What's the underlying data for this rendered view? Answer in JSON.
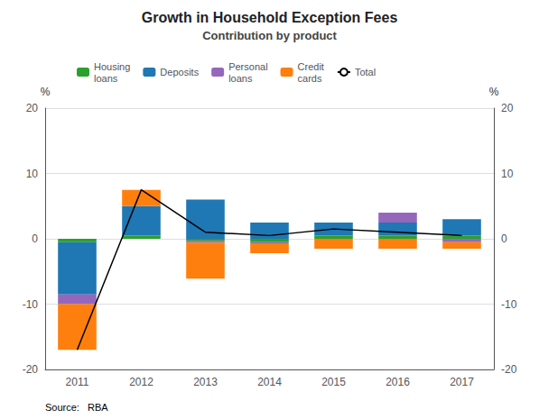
{
  "chart_data": {
    "type": "bar",
    "title": "Growth in Household Exception Fees",
    "subtitle": "Contribution by product",
    "categories": [
      2011,
      2012,
      2013,
      2014,
      2015,
      2016,
      2017
    ],
    "series": [
      {
        "name": "Housing\nloans",
        "color": "#2ca02c",
        "values": [
          -0.5,
          0.5,
          -0.3,
          -0.5,
          0.5,
          0.5,
          0.5
        ]
      },
      {
        "name": "Deposits",
        "color": "#1f77b4",
        "values": [
          -8.0,
          4.5,
          6.0,
          2.5,
          2.0,
          2.0,
          2.5
        ]
      },
      {
        "name": "Personal\nloans",
        "color": "#9467bd",
        "values": [
          -1.5,
          0.0,
          -0.3,
          -0.2,
          0.0,
          1.5,
          -0.5
        ]
      },
      {
        "name": "Credit\ncards",
        "color": "#ff7f0e",
        "values": [
          -7.0,
          2.5,
          -5.5,
          -1.5,
          -1.5,
          -1.5,
          -1.0
        ]
      },
      {
        "name": "Total",
        "type": "line",
        "color": "#000000",
        "values": [
          -17.0,
          7.5,
          1.0,
          0.5,
          1.5,
          1.0,
          0.5
        ]
      }
    ],
    "stacked": true,
    "ylabel": "%",
    "ylim": [
      -20,
      20
    ],
    "yticks": [
      -20,
      -10,
      0,
      10,
      20
    ],
    "grid": true,
    "legend": "upper left",
    "source": "Source:   RBA"
  }
}
